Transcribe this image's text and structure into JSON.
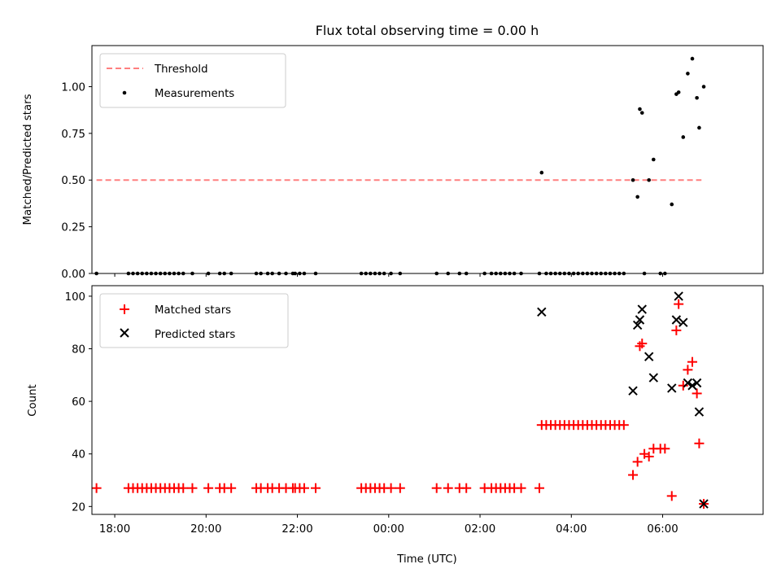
{
  "chart_data": [
    {
      "type": "scatter",
      "title": "Flux total observing time = 0.00 h",
      "xlabel": "",
      "ylabel": "Matched/Predicted stars",
      "ylim": [
        0,
        1.22
      ],
      "xlim": [
        -6.5,
        8.2
      ],
      "x_unit": "hours relative to 00:00 UTC",
      "yticks": [
        0.0,
        0.25,
        0.5,
        0.75,
        1.0
      ],
      "ytick_labels": [
        "0.00",
        "0.25",
        "0.50",
        "0.75",
        "1.00"
      ],
      "legend": {
        "placement": "upper-left",
        "entries": [
          "Threshold",
          "Measurements"
        ]
      },
      "series": [
        {
          "name": "Threshold",
          "style": "dashed-line",
          "color": "#ff7f7f",
          "x": [
            -6.4,
            6.85
          ],
          "y": [
            0.5,
            0.5
          ]
        },
        {
          "name": "Measurements",
          "style": "dot",
          "color": "#000000",
          "x": [
            -6.4,
            -5.7,
            -5.6,
            -5.5,
            -5.4,
            -5.3,
            -5.2,
            -5.1,
            -5.0,
            -4.9,
            -4.8,
            -4.7,
            -4.6,
            -4.5,
            -4.3,
            -3.95,
            -3.7,
            -3.6,
            -3.45,
            -2.9,
            -2.8,
            -2.65,
            -2.55,
            -2.4,
            -2.25,
            -2.1,
            -2.05,
            -1.95,
            -1.85,
            -1.6,
            -0.6,
            -0.5,
            -0.4,
            -0.3,
            -0.2,
            -0.1,
            0.05,
            0.25,
            1.05,
            1.3,
            1.55,
            1.7,
            2.1,
            2.25,
            2.35,
            2.45,
            2.55,
            2.65,
            2.75,
            2.9,
            3.3,
            3.35,
            3.45,
            3.55,
            3.65,
            3.75,
            3.85,
            3.95,
            4.05,
            4.15,
            4.25,
            4.35,
            4.45,
            4.55,
            4.65,
            4.75,
            4.85,
            4.95,
            5.05,
            5.15,
            5.35,
            5.45,
            5.5,
            5.55,
            5.6,
            5.7,
            5.8,
            5.95,
            6.05,
            6.2,
            6.3,
            6.35,
            6.45,
            6.55,
            6.65,
            6.75,
            6.8,
            6.9
          ],
          "y": [
            0,
            0,
            0,
            0,
            0,
            0,
            0,
            0,
            0,
            0,
            0,
            0,
            0,
            0,
            0,
            0,
            0,
            0,
            0,
            0,
            0,
            0,
            0,
            0,
            0,
            0,
            0,
            0,
            0,
            0,
            0,
            0,
            0,
            0,
            0,
            0,
            0,
            0,
            0,
            0,
            0,
            0,
            0,
            0,
            0,
            0,
            0,
            0,
            0,
            0,
            0,
            0.54,
            0,
            0,
            0,
            0,
            0,
            0,
            0,
            0,
            0,
            0,
            0,
            0,
            0,
            0,
            0,
            0,
            0,
            0,
            0.5,
            0.41,
            0.88,
            0.86,
            0,
            0.5,
            0.61,
            0,
            0,
            0.37,
            0.96,
            0.97,
            0.73,
            1.07,
            1.15,
            0.94,
            0.78,
            1.0
          ]
        }
      ]
    },
    {
      "type": "scatter",
      "title": "",
      "xlabel": "Time (UTC)",
      "ylabel": "Count",
      "ylim": [
        17,
        104
      ],
      "xlim": [
        -6.5,
        8.2
      ],
      "x_unit": "hours relative to 00:00 UTC",
      "yticks": [
        20,
        40,
        60,
        80,
        100
      ],
      "ytick_labels": [
        "20",
        "40",
        "60",
        "80",
        "100"
      ],
      "xticks": [
        -6,
        -4,
        -2,
        0,
        2,
        4,
        6
      ],
      "xtick_labels": [
        "18:00",
        "20:00",
        "22:00",
        "00:00",
        "02:00",
        "04:00",
        "06:00"
      ],
      "legend": {
        "placement": "upper-left",
        "entries": [
          "Matched stars",
          "Predicted stars"
        ]
      },
      "series": [
        {
          "name": "Matched stars",
          "marker": "plus",
          "color": "#ff0000",
          "x": [
            -6.4,
            -5.7,
            -5.6,
            -5.5,
            -5.4,
            -5.3,
            -5.2,
            -5.1,
            -5.0,
            -4.9,
            -4.8,
            -4.7,
            -4.6,
            -4.5,
            -4.3,
            -3.95,
            -3.7,
            -3.6,
            -3.45,
            -2.9,
            -2.8,
            -2.65,
            -2.55,
            -2.4,
            -2.25,
            -2.1,
            -2.05,
            -1.95,
            -1.85,
            -1.6,
            -0.6,
            -0.5,
            -0.4,
            -0.3,
            -0.2,
            -0.1,
            0.05,
            0.25,
            1.05,
            1.3,
            1.55,
            1.7,
            2.1,
            2.25,
            2.35,
            2.45,
            2.55,
            2.65,
            2.75,
            2.9,
            3.3,
            3.35,
            3.45,
            3.55,
            3.65,
            3.75,
            3.85,
            3.95,
            4.05,
            4.15,
            4.25,
            4.35,
            4.45,
            4.55,
            4.65,
            4.75,
            4.85,
            4.95,
            5.05,
            5.15,
            5.35,
            5.45,
            5.5,
            5.55,
            5.6,
            5.7,
            5.8,
            5.95,
            6.05,
            6.2,
            6.3,
            6.35,
            6.45,
            6.55,
            6.65,
            6.75,
            6.8,
            6.9
          ],
          "y": [
            27,
            27,
            27,
            27,
            27,
            27,
            27,
            27,
            27,
            27,
            27,
            27,
            27,
            27,
            27,
            27,
            27,
            27,
            27,
            27,
            27,
            27,
            27,
            27,
            27,
            27,
            27,
            27,
            27,
            27,
            27,
            27,
            27,
            27,
            27,
            27,
            27,
            27,
            27,
            27,
            27,
            27,
            27,
            27,
            27,
            27,
            27,
            27,
            27,
            27,
            27,
            51,
            51,
            51,
            51,
            51,
            51,
            51,
            51,
            51,
            51,
            51,
            51,
            51,
            51,
            51,
            51,
            51,
            51,
            51,
            32,
            37,
            81,
            82,
            40,
            39,
            42,
            42,
            42,
            24,
            87,
            97,
            66,
            72,
            75,
            63,
            44,
            21
          ]
        },
        {
          "name": "Predicted stars",
          "marker": "x",
          "color": "#000000",
          "x": [
            3.35,
            5.35,
            5.45,
            5.5,
            5.55,
            5.7,
            5.8,
            6.2,
            6.3,
            6.35,
            6.45,
            6.55,
            6.65,
            6.75,
            6.8,
            6.9
          ],
          "y": [
            94,
            64,
            89,
            91,
            95,
            77,
            69,
            65,
            91,
            100,
            90,
            67,
            66,
            67,
            56,
            21
          ]
        }
      ]
    }
  ]
}
